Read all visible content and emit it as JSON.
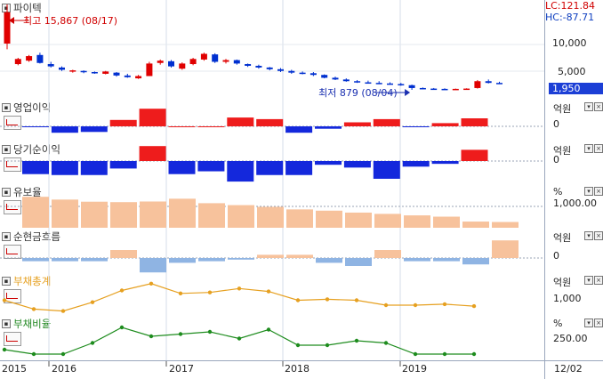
{
  "price": {
    "title": "파이텍",
    "high_label": "최고 15,867 (08/17)",
    "low_label": "최저 879 (08/04)",
    "lc": "LC:121.84",
    "hc": "HC:-87.71",
    "current": "1,950",
    "ticks": [
      "10,000",
      "5,000"
    ]
  },
  "panels": [
    {
      "id": "op",
      "title": "영업이익",
      "color": "#333333",
      "unit": "억원",
      "ticks": [
        "0"
      ]
    },
    {
      "id": "net",
      "title": "당기순이익",
      "color": "#333333",
      "unit": "억원",
      "ticks": [
        "0"
      ]
    },
    {
      "id": "reserve",
      "title": "유보율",
      "color": "#333333",
      "unit": "%",
      "ticks": [
        "1,000.00"
      ]
    },
    {
      "id": "cash",
      "title": "순현금흐름",
      "color": "#333333",
      "unit": "억원",
      "ticks": [
        "0"
      ]
    },
    {
      "id": "debt",
      "title": "부채총계",
      "color": "#e6a020",
      "unit": "억원",
      "ticks": [
        "1,000"
      ]
    },
    {
      "id": "ratio",
      "title": "부채비율",
      "color": "#228822",
      "unit": "%",
      "ticks": [
        "250.00"
      ]
    }
  ],
  "xaxis": {
    "labels": [
      "2015",
      "2016",
      "2017",
      "2018",
      "2019"
    ],
    "date": "12/02"
  },
  "chart_data": [
    {
      "type": "candlestick",
      "name": "파이텍",
      "ohlc": [
        [
          15867,
          8000,
          9000,
          14500
        ],
        [
          6500,
          5200,
          5400,
          6300
        ],
        [
          7000,
          5800,
          6000,
          6800
        ],
        [
          7400,
          5500,
          7000,
          5600
        ],
        [
          5800,
          4800,
          5400,
          5000
        ],
        [
          5000,
          4200,
          4800,
          4400
        ],
        [
          4400,
          3900,
          4100,
          4300
        ],
        [
          4300,
          3800,
          4200,
          4000
        ],
        [
          4100,
          3700,
          4000,
          3800
        ],
        [
          4200,
          3600,
          3700,
          4100
        ],
        [
          4000,
          3200,
          3900,
          3400
        ],
        [
          3700,
          3000,
          3400,
          3100
        ],
        [
          3500,
          2800,
          2900,
          3300
        ],
        [
          5800,
          3300,
          3300,
          5500
        ],
        [
          6200,
          5300,
          5600,
          6000
        ],
        [
          6100,
          4800,
          5900,
          5000
        ],
        [
          5700,
          4400,
          4600,
          5500
        ],
        [
          6500,
          5200,
          5400,
          6300
        ],
        [
          7400,
          6000,
          6200,
          7200
        ],
        [
          7300,
          5600,
          7100,
          5800
        ],
        [
          6300,
          5500,
          5800,
          6100
        ],
        [
          6200,
          5300,
          6100,
          5500
        ],
        [
          5500,
          4900,
          5400,
          5100
        ],
        [
          5300,
          4600,
          5100,
          4800
        ],
        [
          4900,
          4300,
          4800,
          4500
        ],
        [
          4700,
          4000,
          4500,
          4200
        ],
        [
          4400,
          3700,
          4200,
          3900
        ],
        [
          4100,
          3600,
          3900,
          3800
        ],
        [
          4000,
          3300,
          3800,
          3500
        ],
        [
          3600,
          2900,
          3500,
          3000
        ],
        [
          3200,
          2600,
          3000,
          2700
        ],
        [
          2900,
          2300,
          2700,
          2400
        ],
        [
          2600,
          2100,
          2400,
          2200
        ],
        [
          2500,
          2000,
          2200,
          2100
        ],
        [
          2400,
          1900,
          2100,
          2000
        ],
        [
          2200,
          1800,
          2000,
          1900
        ],
        [
          2100,
          1600,
          1900,
          1700
        ],
        [
          1800,
          879,
          1700,
          1200
        ],
        [
          1300,
          1000,
          1200,
          1100
        ],
        [
          1200,
          1000,
          1100,
          1050
        ],
        [
          1150,
          950,
          1050,
          1000
        ],
        [
          1100,
          950,
          1000,
          1050
        ],
        [
          1150,
          1000,
          1050,
          1100
        ],
        [
          2600,
          1100,
          1200,
          2400
        ],
        [
          2700,
          2000,
          2400,
          2100
        ],
        [
          2300,
          1900,
          2100,
          1950
        ]
      ]
    },
    {
      "type": "bar",
      "name": "영업이익",
      "values": [
        -5,
        -40,
        -35,
        40,
        110,
        0,
        0,
        55,
        45,
        -40,
        -15,
        25,
        45,
        -5,
        20,
        50
      ]
    },
    {
      "type": "bar",
      "name": "당기순이익",
      "values": [
        -70,
        -75,
        -75,
        -40,
        80,
        -70,
        -55,
        -110,
        -75,
        -75,
        -20,
        -35,
        -95,
        -30,
        -15,
        60
      ]
    },
    {
      "type": "bar",
      "name": "유보율",
      "values": [
        1450,
        1320,
        1220,
        1200,
        1230,
        1360,
        1150,
        1060,
        980,
        860,
        800,
        710,
        650,
        580,
        520,
        290,
        270
      ]
    },
    {
      "type": "bar",
      "name": "순현금흐름",
      "values": [
        -20,
        -20,
        -20,
        50,
        -90,
        -30,
        -20,
        -10,
        20,
        20,
        -30,
        -50,
        50,
        -20,
        -20,
        -40,
        110
      ]
    },
    {
      "type": "line",
      "name": "부채총계",
      "values": [
        1050,
        960,
        940,
        1030,
        1150,
        1220,
        1120,
        1130,
        1170,
        1140,
        1050,
        1060,
        1050,
        1000,
        1000,
        1010,
        990
      ]
    },
    {
      "type": "line",
      "name": "부채비율",
      "values": [
        220,
        200,
        200,
        250,
        320,
        280,
        290,
        300,
        270,
        310,
        240,
        240,
        260,
        250,
        200,
        200,
        200
      ]
    }
  ]
}
